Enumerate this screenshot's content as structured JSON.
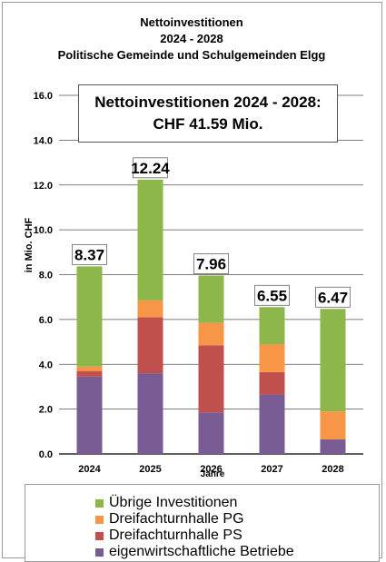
{
  "title_lines": [
    "Nettoinvestitionen",
    "2024 - 2028",
    "Politische  Gemeinde  und  Schulgemeinden  Elgg"
  ],
  "summary": {
    "line1": "Nettoinvestitionen 2024 - 2028:",
    "line2": "CHF 41.59 Mio."
  },
  "colors": {
    "uebrige": "#8db74a",
    "pg": "#f79646",
    "ps": "#c0504d",
    "betriebe": "#7a5c94"
  },
  "chart_data": {
    "type": "bar",
    "stacked": true,
    "categories": [
      "2024",
      "2025",
      "2026",
      "2027",
      "2028"
    ],
    "xlabel": "Jahre",
    "ylabel": "in Mio. CHF",
    "ylim": [
      0,
      16
    ],
    "yticks": [
      "0.0",
      "2.0",
      "4.0",
      "6.0",
      "8.0",
      "10.0",
      "12.0",
      "14.0",
      "16.0"
    ],
    "grid": true,
    "legend_position": "bottom",
    "series": [
      {
        "name": "eigenwirtschaftliche Betriebe",
        "color": "#7a5c94",
        "values": [
          3.45,
          3.6,
          1.85,
          2.65,
          0.65
        ]
      },
      {
        "name": "Dreifachturnhalle PS",
        "color": "#c0504d",
        "values": [
          0.25,
          2.5,
          3.0,
          1.0,
          0.0
        ]
      },
      {
        "name": "Dreifachturnhalle PG",
        "color": "#f79646",
        "values": [
          0.2,
          0.75,
          1.0,
          1.25,
          1.25
        ]
      },
      {
        "name": "Übrige Investitionen",
        "color": "#8db74a",
        "values": [
          4.47,
          5.39,
          2.11,
          1.65,
          4.57
        ]
      }
    ],
    "totals": [
      "8.37",
      "12.24",
      "7.96",
      "6.55",
      "6.47"
    ]
  },
  "legend": [
    {
      "label": "Übrige Investitionen",
      "color": "#8db74a"
    },
    {
      "label": "Dreifachturnhalle PG",
      "color": "#f79646"
    },
    {
      "label": "Dreifachturnhalle PS",
      "color": "#c0504d"
    },
    {
      "label": "eigenwirtschaftliche Betriebe",
      "color": "#7a5c94"
    }
  ]
}
